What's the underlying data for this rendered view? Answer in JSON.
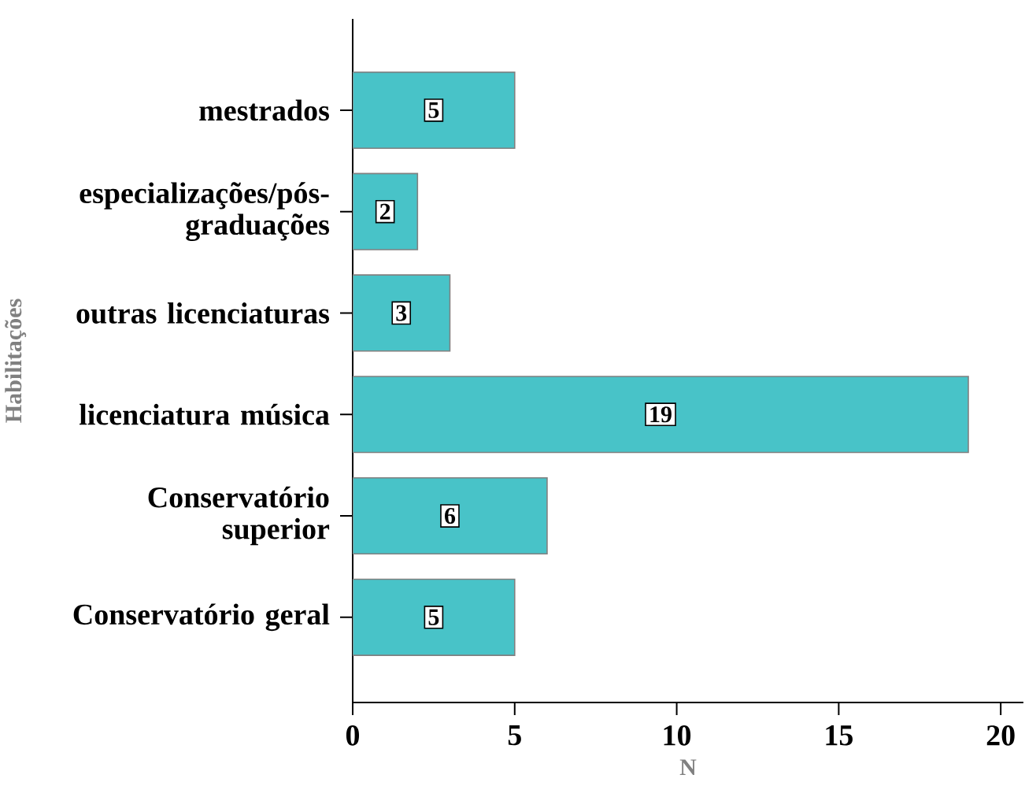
{
  "chart_data": {
    "type": "bar",
    "orientation": "horizontal",
    "xlabel": "N",
    "ylabel": "Habilitações",
    "categories": [
      "mestrados",
      "especializações/pós-graduações",
      "outras licenciaturas",
      "licenciatura música",
      "Conservatório superior",
      "Conservatório geral"
    ],
    "values": [
      5,
      2,
      3,
      19,
      6,
      5
    ],
    "color": "#48c3c8",
    "data_labels": true,
    "xlim": [
      0,
      20.7
    ],
    "xticks": [
      0,
      5,
      10,
      15,
      20
    ],
    "grid": false
  }
}
